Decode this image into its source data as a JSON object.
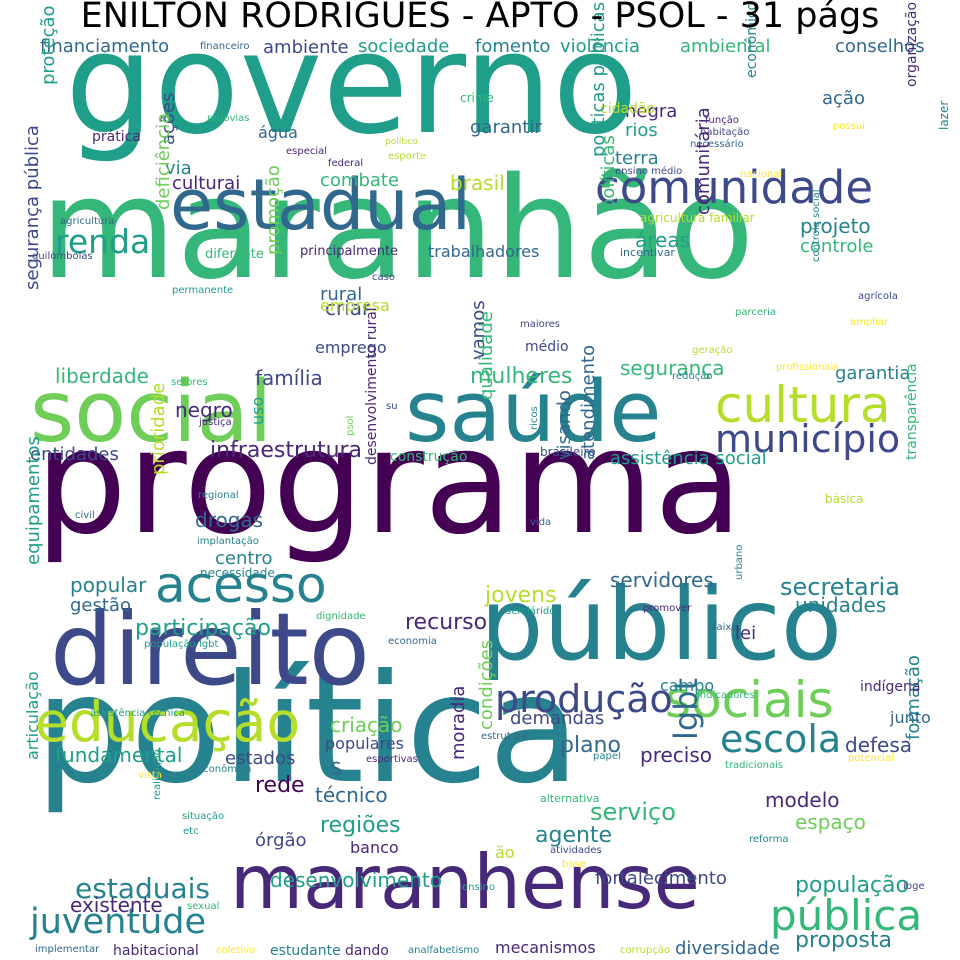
{
  "title": "ENILTON RODRIGUES - APTO - PSOL - 31 págs",
  "palette": [
    "#440154",
    "#482878",
    "#3e4989",
    "#31688e",
    "#26828e",
    "#1f9e89",
    "#35b779",
    "#6ece58",
    "#b5de2b",
    "#fde725"
  ],
  "words": [
    {
      "text": "governo"
    },
    {
      "text": "maranhão"
    },
    {
      "text": "programa"
    },
    {
      "text": "política"
    },
    {
      "text": "estadual"
    },
    {
      "text": "público"
    },
    {
      "text": "direito"
    },
    {
      "text": "social"
    },
    {
      "text": "saúde"
    },
    {
      "text": "maranhense"
    },
    {
      "text": "comunidade"
    },
    {
      "text": "cultura"
    },
    {
      "text": "acesso"
    },
    {
      "text": "educação"
    },
    {
      "text": "sociais"
    },
    {
      "text": "município"
    },
    {
      "text": "juventude"
    },
    {
      "text": "pública"
    },
    {
      "text": "escola"
    },
    {
      "text": "produção"
    },
    {
      "text": "renda"
    },
    {
      "text": "secretaria"
    },
    {
      "text": "lgbt"
    },
    {
      "text": "infraestrutura"
    },
    {
      "text": "mulheres"
    },
    {
      "text": "participação"
    },
    {
      "text": "serviço"
    },
    {
      "text": "desenvolvimento"
    },
    {
      "text": "estaduais"
    },
    {
      "text": "população"
    },
    {
      "text": "proposta"
    },
    {
      "text": "diversidade"
    },
    {
      "text": "mecanismos"
    },
    {
      "text": "fortalecimento"
    },
    {
      "text": "existente"
    },
    {
      "text": "agente"
    },
    {
      "text": "espaço"
    },
    {
      "text": "modelo"
    },
    {
      "text": "formação"
    },
    {
      "text": "técnico"
    },
    {
      "text": "regiões"
    },
    {
      "text": "rede"
    },
    {
      "text": "banco"
    },
    {
      "text": "órgão"
    },
    {
      "text": "ão"
    },
    {
      "text": "fundamental"
    },
    {
      "text": "estados"
    },
    {
      "text": "populares"
    },
    {
      "text": "criação"
    },
    {
      "text": "demandas"
    },
    {
      "text": "plano"
    },
    {
      "text": "preciso"
    },
    {
      "text": "defesa"
    },
    {
      "text": "junto"
    },
    {
      "text": "indígena"
    },
    {
      "text": "campo"
    },
    {
      "text": "lei"
    },
    {
      "text": "recurso"
    },
    {
      "text": "unidades"
    },
    {
      "text": "servidores"
    },
    {
      "text": "jovens"
    },
    {
      "text": "popular"
    },
    {
      "text": "gestão"
    },
    {
      "text": "centro"
    },
    {
      "text": "drogas"
    },
    {
      "text": "negro"
    },
    {
      "text": "família"
    },
    {
      "text": "liberdade"
    },
    {
      "text": "entidades"
    },
    {
      "text": "uso"
    },
    {
      "text": "rural"
    },
    {
      "text": "criar"
    },
    {
      "text": "emprego"
    },
    {
      "text": "empresa"
    },
    {
      "text": "vamos"
    },
    {
      "text": "médio"
    },
    {
      "text": "segurança"
    },
    {
      "text": "garantia"
    },
    {
      "text": "assistência social"
    },
    {
      "text": "construção"
    },
    {
      "text": "brasileiro"
    },
    {
      "text": "projeto"
    },
    {
      "text": "controle"
    },
    {
      "text": "áreas"
    },
    {
      "text": "brasil"
    },
    {
      "text": "combate"
    },
    {
      "text": "culturai"
    },
    {
      "text": "via"
    },
    {
      "text": "trabalhadores"
    },
    {
      "text": "principalmente"
    },
    {
      "text": "diferente"
    },
    {
      "text": "terra"
    },
    {
      "text": "negra"
    },
    {
      "text": "rios"
    },
    {
      "text": "garantir"
    },
    {
      "text": "ação"
    },
    {
      "text": "água"
    },
    {
      "text": "ações"
    },
    {
      "text": "prática"
    },
    {
      "text": "financiamento"
    },
    {
      "text": "ambiente"
    },
    {
      "text": "sociedade"
    },
    {
      "text": "fomento"
    },
    {
      "text": "violência"
    },
    {
      "text": "ambiental"
    },
    {
      "text": "conselhos"
    },
    {
      "text": "financeiro"
    },
    {
      "text": "cidadão"
    },
    {
      "text": "crime"
    },
    {
      "text": "rodovias"
    },
    {
      "text": "especial"
    },
    {
      "text": "federal"
    },
    {
      "text": "político"
    },
    {
      "text": "esporte"
    },
    {
      "text": "necessário"
    },
    {
      "text": "ensino médio"
    },
    {
      "text": "função"
    },
    {
      "text": "habitação"
    },
    {
      "text": "possui"
    },
    {
      "text": "nacional"
    },
    {
      "text": "lazer"
    },
    {
      "text": "agricultura"
    },
    {
      "text": "agricultura familiar"
    },
    {
      "text": "quilombolas"
    },
    {
      "text": "incentivar"
    },
    {
      "text": "caso"
    },
    {
      "text": "parceria"
    },
    {
      "text": "agrícola"
    },
    {
      "text": "ampliar"
    },
    {
      "text": "permanente"
    },
    {
      "text": "maiores"
    },
    {
      "text": "geração"
    },
    {
      "text": "redução"
    },
    {
      "text": "profissionais"
    },
    {
      "text": "setores"
    },
    {
      "text": "su"
    },
    {
      "text": "psol"
    },
    {
      "text": "justiça"
    },
    {
      "text": "ricos"
    },
    {
      "text": "prioridade"
    },
    {
      "text": "regional"
    },
    {
      "text": "civil"
    },
    {
      "text": "implantação"
    },
    {
      "text": "necessidade"
    },
    {
      "text": "vida"
    },
    {
      "text": "básica"
    },
    {
      "text": "promover"
    },
    {
      "text": "semiárido"
    },
    {
      "text": "dignidade"
    },
    {
      "text": "faixa"
    },
    {
      "text": "economia"
    },
    {
      "text": "população lgbt"
    },
    {
      "text": "indicadores"
    },
    {
      "text": "assistência técnica"
    },
    {
      "text": "estrutura"
    },
    {
      "text": "esportivas"
    },
    {
      "text": "papel"
    },
    {
      "text": "tradicionais"
    },
    {
      "text": "potencial"
    },
    {
      "text": "vista"
    },
    {
      "text": "econômica"
    },
    {
      "text": "realização"
    },
    {
      "text": "situação"
    },
    {
      "text": "etc"
    },
    {
      "text": "alternativa"
    },
    {
      "text": "atividades"
    },
    {
      "text": "reforma"
    },
    {
      "text": "base"
    },
    {
      "text": "ensino"
    },
    {
      "text": "sexual"
    },
    {
      "text": "ibge"
    },
    {
      "text": "implementar"
    },
    {
      "text": "habitacional"
    },
    {
      "text": "coletivo"
    },
    {
      "text": "estudante"
    },
    {
      "text": "dando"
    },
    {
      "text": "analfabetismo"
    },
    {
      "text": "corrupção"
    },
    {
      "text": "s"
    },
    {
      "text": "articulação"
    },
    {
      "text": "equipamentos"
    },
    {
      "text": "segurança pública"
    },
    {
      "text": "proteção"
    },
    {
      "text": "deficiência"
    },
    {
      "text": "promoção"
    },
    {
      "text": "qualidade"
    },
    {
      "text": "visando"
    },
    {
      "text": "atendimento"
    },
    {
      "text": "desenvolvimento rural"
    },
    {
      "text": "políticas públicas"
    },
    {
      "text": "políticas"
    },
    {
      "text": "comunitária"
    },
    {
      "text": "moradia"
    },
    {
      "text": "condições"
    },
    {
      "text": "econômico"
    },
    {
      "text": "organização"
    },
    {
      "text": "transparência"
    },
    {
      "text": "controle social"
    },
    {
      "text": "urbano"
    }
  ]
}
